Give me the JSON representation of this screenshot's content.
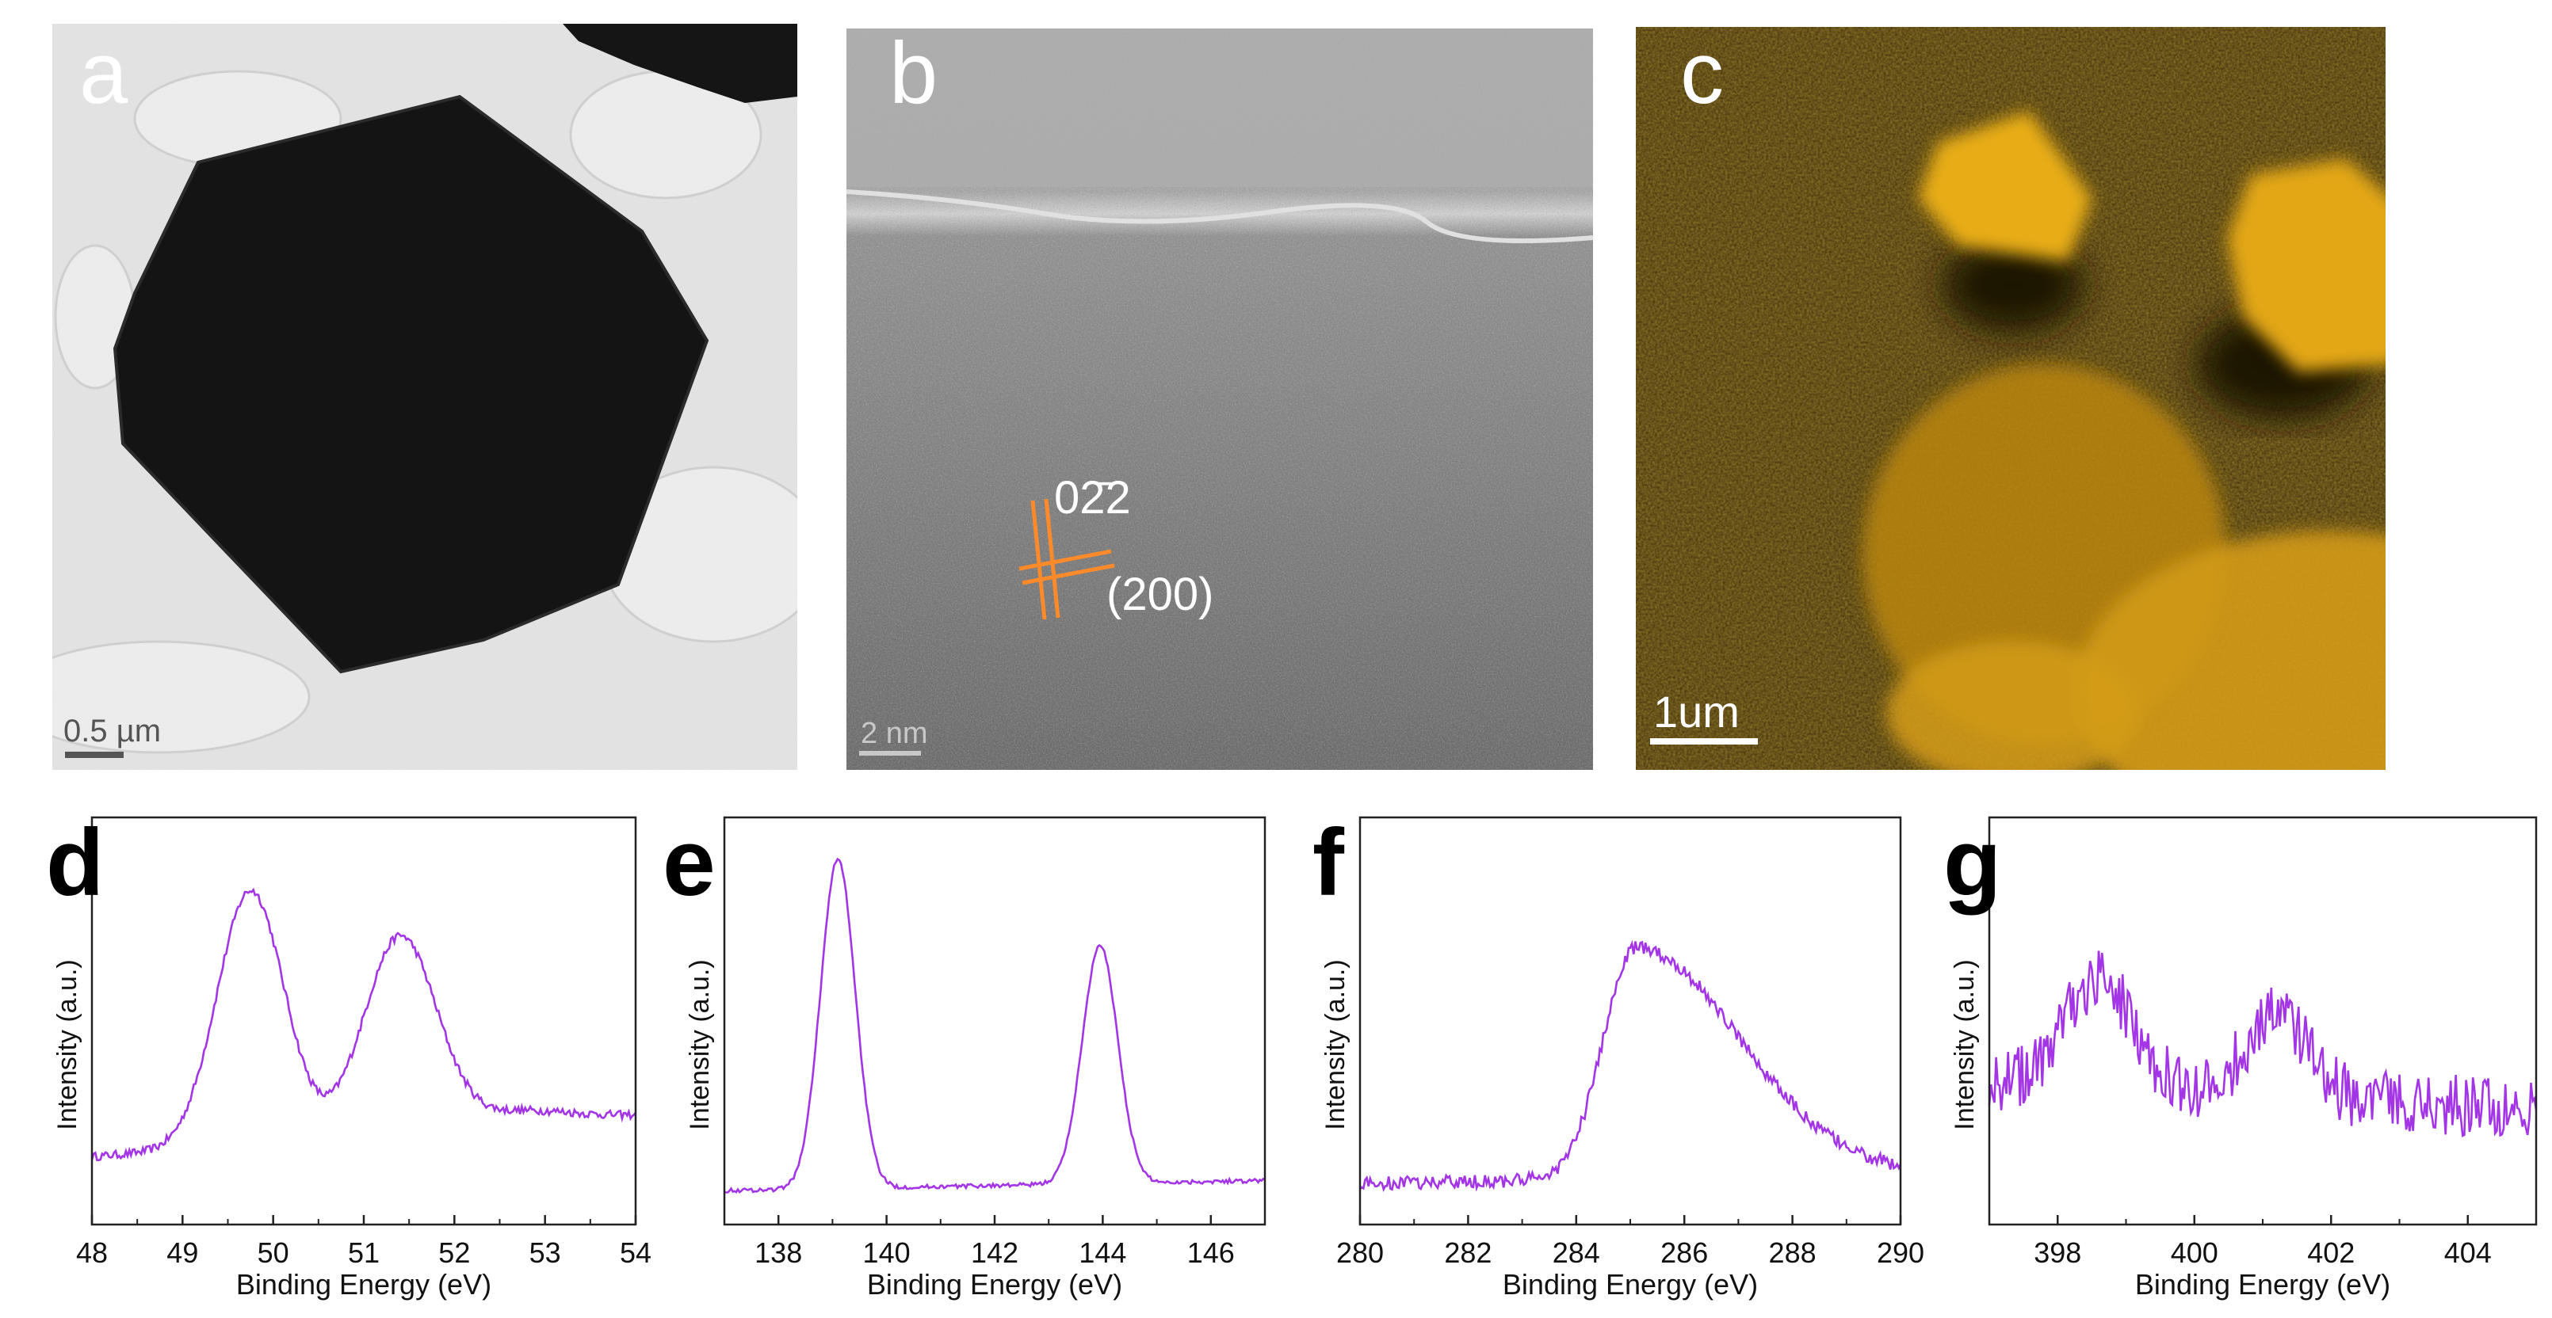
{
  "figure": {
    "panel_a": {
      "letter": "a",
      "scale_bar": "0.5 µm"
    },
    "panel_b": {
      "letter": "b",
      "scale_bar": "2 nm",
      "label_plane1": "02̄2",
      "label_plane2": "(200)"
    },
    "panel_c": {
      "letter": "c",
      "scale_bar": "1um"
    }
  },
  "colors": {
    "trace": "#a335e6",
    "tem_background": "#e6e6e6",
    "particle": "#141414",
    "lattice_lines": "#ff8a2a",
    "map_background": "#3a2a08",
    "map_signal": "#f0b21a"
  },
  "chart_data": [
    {
      "panel": "d",
      "type": "line",
      "xlabel": "Binding Energy (eV)",
      "ylabel": "Intensity (a.u.)",
      "xlim": [
        48,
        54
      ],
      "ylim": [
        0,
        1.2
      ],
      "ticks": [
        "48",
        "49",
        "50",
        "51",
        "52",
        "53",
        "54"
      ],
      "tick_values": [
        48,
        49,
        50,
        51,
        52,
        53,
        54
      ],
      "baseline": 0.2,
      "slope": 0.02,
      "peaks": [
        {
          "center": 49.75,
          "height": 0.75,
          "width": 0.37
        },
        {
          "center": 51.4,
          "height": 0.58,
          "width": 0.4
        },
        {
          "center": 52.7,
          "height": 0.04,
          "width": 0.6
        }
      ],
      "noise": 0.012
    },
    {
      "panel": "e",
      "type": "line",
      "xlabel": "Binding Energy (eV)",
      "ylabel": "Intensity (a.u.)",
      "xlim": [
        137,
        147
      ],
      "ylim": [
        0,
        1.2
      ],
      "ticks": [
        "138",
        "140",
        "142",
        "144",
        "146"
      ],
      "tick_values": [
        138,
        140,
        142,
        144,
        146
      ],
      "baseline": 0.1,
      "slope": 0.003,
      "peaks": [
        {
          "center": 139.1,
          "height": 0.97,
          "width": 0.32
        },
        {
          "center": 143.95,
          "height": 0.7,
          "width": 0.33
        }
      ],
      "noise": 0.006
    },
    {
      "panel": "f",
      "type": "line",
      "xlabel": "Binding Energy (eV)",
      "ylabel": "Intensity (a.u.)",
      "xlim": [
        280,
        290
      ],
      "ylim": [
        0,
        1.2
      ],
      "ticks": [
        "280",
        "282",
        "284",
        "286",
        "288",
        "290"
      ],
      "tick_values": [
        280,
        282,
        284,
        286,
        288,
        290
      ],
      "baseline": 0.12,
      "slope": 0.003,
      "peaks": [
        {
          "center": 285.1,
          "height": 0.68,
          "width": 0.6,
          "tail": 1.9
        }
      ],
      "noise": 0.02
    },
    {
      "panel": "g",
      "type": "line",
      "xlabel": "Binding Energy (eV)",
      "ylabel": "Intensity (a.u.)",
      "xlim": [
        397,
        405
      ],
      "ylim": [
        0,
        1.2
      ],
      "ticks": [
        "398",
        "400",
        "402",
        "404"
      ],
      "tick_values": [
        398,
        400,
        402,
        404
      ],
      "baseline": 0.42,
      "slope": -0.01,
      "peaks": [
        {
          "center": 398.6,
          "height": 0.32,
          "width": 0.5
        },
        {
          "center": 401.2,
          "height": 0.24,
          "width": 0.45
        }
      ],
      "noise": 0.09
    }
  ]
}
